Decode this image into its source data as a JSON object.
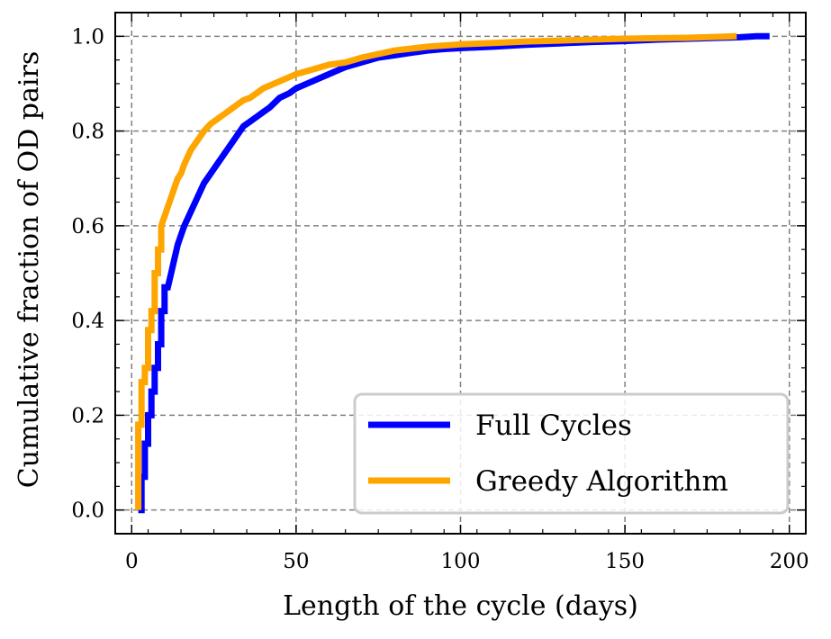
{
  "chart_data": {
    "type": "line",
    "title": "",
    "xlabel": "Length of the cycle (days)",
    "ylabel": "Cumulative fraction of OD pairs",
    "xlim": [
      -5,
      205
    ],
    "ylim": [
      -0.05,
      1.05
    ],
    "xticks": [
      0,
      50,
      100,
      150,
      200
    ],
    "yticks": [
      0.0,
      0.2,
      0.4,
      0.6,
      0.8,
      1.0
    ],
    "xtick_labels": [
      "0",
      "50",
      "100",
      "150",
      "200"
    ],
    "ytick_labels": [
      "0.0",
      "0.2",
      "0.4",
      "0.6",
      "0.8",
      "1.0"
    ],
    "grid": true,
    "legend_position": "lower-right",
    "series": [
      {
        "name": "Full Cycles",
        "color": "#0000ff",
        "x": [
          2,
          3,
          3,
          4,
          4,
          5,
          5,
          6,
          6,
          7,
          7,
          8,
          8,
          9,
          9,
          10,
          10,
          11,
          12,
          13,
          14,
          15,
          16,
          18,
          20,
          22,
          24,
          26,
          28,
          30,
          32,
          34,
          36,
          38,
          40,
          42,
          45,
          48,
          50,
          55,
          60,
          65,
          70,
          75,
          80,
          85,
          90,
          95,
          100,
          110,
          120,
          130,
          140,
          150,
          160,
          170,
          180,
          185,
          190,
          194
        ],
        "y": [
          0.0,
          0.0,
          0.07,
          0.07,
          0.14,
          0.14,
          0.2,
          0.2,
          0.25,
          0.25,
          0.3,
          0.3,
          0.35,
          0.35,
          0.42,
          0.42,
          0.47,
          0.47,
          0.5,
          0.53,
          0.56,
          0.58,
          0.6,
          0.63,
          0.66,
          0.69,
          0.71,
          0.73,
          0.75,
          0.77,
          0.79,
          0.81,
          0.82,
          0.83,
          0.84,
          0.85,
          0.87,
          0.88,
          0.89,
          0.905,
          0.92,
          0.935,
          0.945,
          0.955,
          0.96,
          0.965,
          0.97,
          0.973,
          0.975,
          0.978,
          0.982,
          0.985,
          0.988,
          0.99,
          0.993,
          0.995,
          0.997,
          0.998,
          1.0,
          1.0
        ]
      },
      {
        "name": "Greedy Algorithm",
        "color": "#ffa500",
        "x": [
          2,
          2,
          3,
          3,
          4,
          4,
          5,
          5,
          6,
          6,
          7,
          7,
          8,
          8,
          9,
          9,
          10,
          11,
          12,
          13,
          14,
          15,
          16,
          18,
          20,
          22,
          24,
          26,
          28,
          30,
          32,
          34,
          36,
          38,
          40,
          45,
          50,
          55,
          60,
          65,
          70,
          80,
          90,
          100,
          110,
          120,
          130,
          140,
          150,
          160,
          170,
          180,
          184
        ],
        "y": [
          0.0,
          0.18,
          0.18,
          0.27,
          0.27,
          0.3,
          0.3,
          0.38,
          0.38,
          0.42,
          0.42,
          0.5,
          0.5,
          0.55,
          0.55,
          0.6,
          0.62,
          0.64,
          0.66,
          0.68,
          0.7,
          0.71,
          0.73,
          0.76,
          0.78,
          0.8,
          0.815,
          0.825,
          0.835,
          0.845,
          0.855,
          0.865,
          0.87,
          0.88,
          0.89,
          0.905,
          0.92,
          0.93,
          0.94,
          0.945,
          0.955,
          0.97,
          0.978,
          0.983,
          0.986,
          0.989,
          0.991,
          0.993,
          0.995,
          0.996,
          0.997,
          0.999,
          1.0
        ]
      }
    ]
  }
}
